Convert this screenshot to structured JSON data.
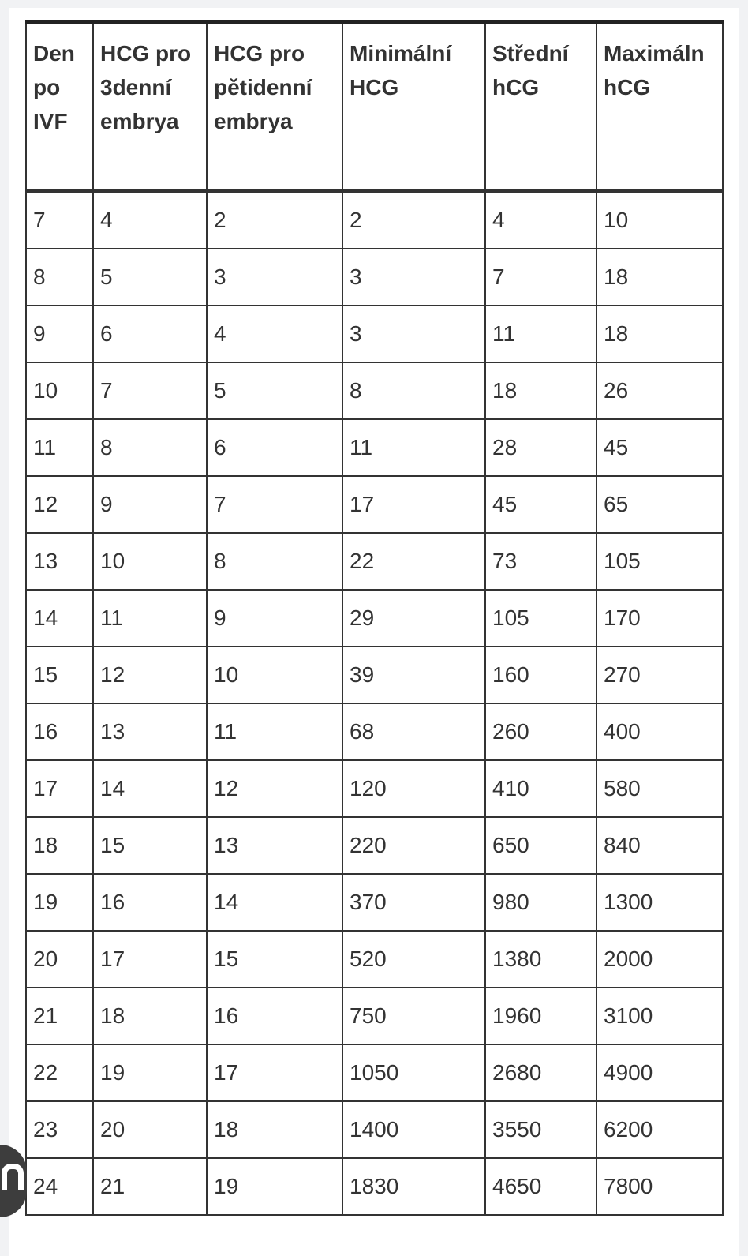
{
  "table": {
    "headers": [
      "Den po IVF",
      "HCG pro 3denní embrya",
      "HCG pro pětidenní embrya",
      "Minimální HCG",
      "Střední hCG",
      "Maximáln hCG"
    ],
    "rows": [
      [
        "7",
        "4",
        "2",
        "2",
        "4",
        "10"
      ],
      [
        "8",
        "5",
        "3",
        "3",
        "7",
        "18"
      ],
      [
        "9",
        "6",
        "4",
        "3",
        "11",
        "18"
      ],
      [
        "10",
        "7",
        "5",
        "8",
        "18",
        "26"
      ],
      [
        "11",
        "8",
        "6",
        "11",
        "28",
        "45"
      ],
      [
        "12",
        "9",
        "7",
        "17",
        "45",
        "65"
      ],
      [
        "13",
        "10",
        "8",
        "22",
        "73",
        "105"
      ],
      [
        "14",
        "11",
        "9",
        "29",
        "105",
        "170"
      ],
      [
        "15",
        "12",
        "10",
        "39",
        "160",
        "270"
      ],
      [
        "16",
        "13",
        "11",
        "68",
        "260",
        "400"
      ],
      [
        "17",
        "14",
        "12",
        "120",
        "410",
        "580"
      ],
      [
        "18",
        "15",
        "13",
        "220",
        "650",
        "840"
      ],
      [
        "19",
        "16",
        "14",
        "370",
        "980",
        "1300"
      ],
      [
        "20",
        "17",
        "15",
        "520",
        "1380",
        "2000"
      ],
      [
        "21",
        "18",
        "16",
        "750",
        "1960",
        "3100"
      ],
      [
        "22",
        "19",
        "17",
        "1050",
        "2680",
        "4900"
      ],
      [
        "23",
        "20",
        "18",
        "1400",
        "3550",
        "6200"
      ],
      [
        "24",
        "21",
        "19",
        "1830",
        "4650",
        "7800"
      ]
    ]
  },
  "floating_button": {
    "icon": "lens-icon"
  }
}
